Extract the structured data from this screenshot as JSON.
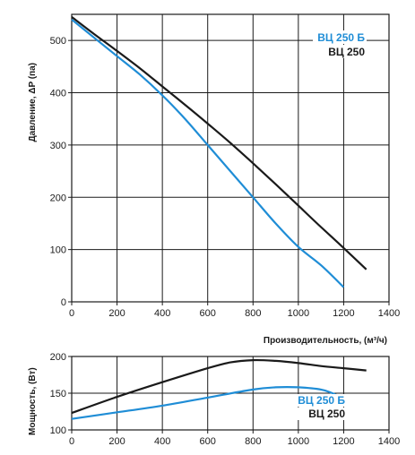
{
  "colors": {
    "series_1": "#1f8dd6",
    "series_2": "#1a1a1a",
    "grid": "#1a1a1a",
    "background": "#ffffff"
  },
  "chart_data": [
    {
      "type": "line",
      "title": "",
      "xlabel": "Производительность, (м³/ч)",
      "ylabel": "Давление, ΔP (па)",
      "xlim": [
        0,
        1400
      ],
      "ylim": [
        0,
        550
      ],
      "xticks": [
        0,
        200,
        400,
        600,
        800,
        1000,
        1200,
        1400
      ],
      "yticks": [
        0,
        100,
        200,
        300,
        400,
        500
      ],
      "grid": true,
      "legend_position": "top-right",
      "series": [
        {
          "name": "ВЦ 250 Б",
          "color": "#1f8dd6",
          "x": [
            0,
            100,
            200,
            300,
            400,
            500,
            600,
            700,
            800,
            900,
            1000,
            1100,
            1200
          ],
          "y": [
            540,
            505,
            470,
            435,
            395,
            350,
            300,
            250,
            200,
            150,
            105,
            70,
            28
          ]
        },
        {
          "name": "ВЦ 250",
          "color": "#1a1a1a",
          "x": [
            0,
            100,
            200,
            300,
            400,
            500,
            600,
            700,
            800,
            900,
            1000,
            1100,
            1200,
            1300
          ],
          "y": [
            545,
            512,
            480,
            447,
            412,
            377,
            341,
            304,
            265,
            225,
            184,
            143,
            103,
            62
          ]
        }
      ]
    },
    {
      "type": "line",
      "title": "",
      "xlabel": "",
      "ylabel": "Мощность, (Вт)",
      "xlim": [
        0,
        1400
      ],
      "ylim": [
        100,
        200
      ],
      "xticks": [
        0,
        200,
        400,
        600,
        800,
        1000,
        1200,
        1400
      ],
      "yticks": [
        100,
        150,
        200
      ],
      "grid": true,
      "legend_position": "center-right",
      "series": [
        {
          "name": "ВЦ 250 Б",
          "color": "#1f8dd6",
          "x": [
            0,
            200,
            400,
            600,
            800,
            900,
            1000,
            1100,
            1150,
            1200
          ],
          "y": [
            115,
            124,
            133,
            144,
            155,
            158,
            158,
            155,
            150,
            143
          ]
        },
        {
          "name": "ВЦ 250",
          "color": "#1a1a1a",
          "x": [
            0,
            200,
            400,
            600,
            700,
            800,
            900,
            1000,
            1100,
            1200,
            1300
          ],
          "y": [
            123,
            145,
            165,
            184,
            192,
            195,
            194,
            191,
            187,
            184,
            181
          ]
        }
      ]
    }
  ]
}
